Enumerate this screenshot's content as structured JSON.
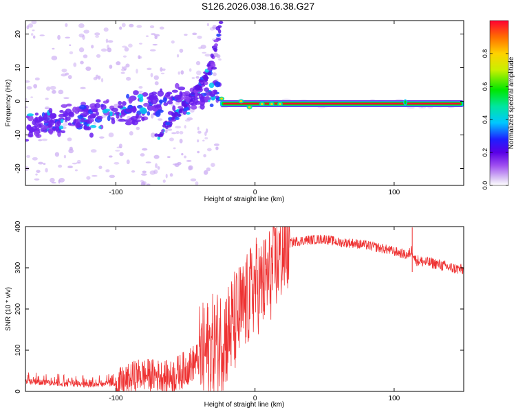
{
  "title": "S126.2026.038.16.38.G27",
  "chart_data": [
    {
      "type": "heatmap",
      "name": "spectrogram",
      "xlabel": "Height of straight line (km)",
      "ylabel": "Frequency (Hz)",
      "xlim": [
        -165,
        150
      ],
      "ylim": [
        -25,
        24
      ],
      "xticks": [
        -100,
        0,
        100
      ],
      "yticks": [
        -20,
        -10,
        0,
        10,
        20
      ],
      "colorbar": {
        "label": "Normalized spectral amplitude",
        "range": [
          0,
          1
        ],
        "ticks": [
          0.0,
          0.2,
          0.4,
          0.6,
          0.8
        ]
      },
      "features": {
        "carrier_line": {
          "x_start": -25,
          "x_end": 150,
          "freq": -0.7
        },
        "spread_band": {
          "x_start": -165,
          "x_end": -25,
          "freq_start": -8,
          "freq_end": 2,
          "width": 6
        },
        "diverging_arcs": [
          {
            "points": [
              [
                -65,
                -7
              ],
              [
                -50,
                -2
              ],
              [
                -38,
                4
              ],
              [
                -30,
                12
              ],
              [
                -25,
                23
              ]
            ]
          },
          {
            "points": [
              [
                -70,
                -11
              ],
              [
                -58,
                -5
              ],
              [
                -45,
                2
              ],
              [
                -38,
                6
              ],
              [
                -30,
                11
              ]
            ]
          }
        ]
      }
    },
    {
      "type": "line",
      "name": "snr",
      "xlabel": "Height of straight line (km)",
      "ylabel": "SNR (10 * v/v)",
      "xlim": [
        -165,
        150
      ],
      "ylim": [
        0,
        400
      ],
      "xticks": [
        -100,
        0,
        100
      ],
      "yticks": [
        0,
        100,
        200,
        300,
        400
      ],
      "color": "#ee3333",
      "x": [
        -165,
        -140,
        -120,
        -100,
        -92,
        -85,
        -75,
        -60,
        -50,
        -40,
        -30,
        -20,
        -12,
        -5,
        0,
        5,
        10,
        15,
        20,
        25,
        30,
        40,
        50,
        60,
        70,
        80,
        90,
        100,
        110,
        113,
        115,
        120,
        130,
        140,
        150
      ],
      "y": [
        20,
        15,
        12,
        15,
        25,
        40,
        40,
        35,
        55,
        80,
        110,
        140,
        180,
        220,
        260,
        255,
        280,
        310,
        340,
        360,
        365,
        368,
        370,
        362,
        360,
        355,
        348,
        340,
        330,
        345,
        320,
        315,
        310,
        300,
        295
      ]
    }
  ]
}
